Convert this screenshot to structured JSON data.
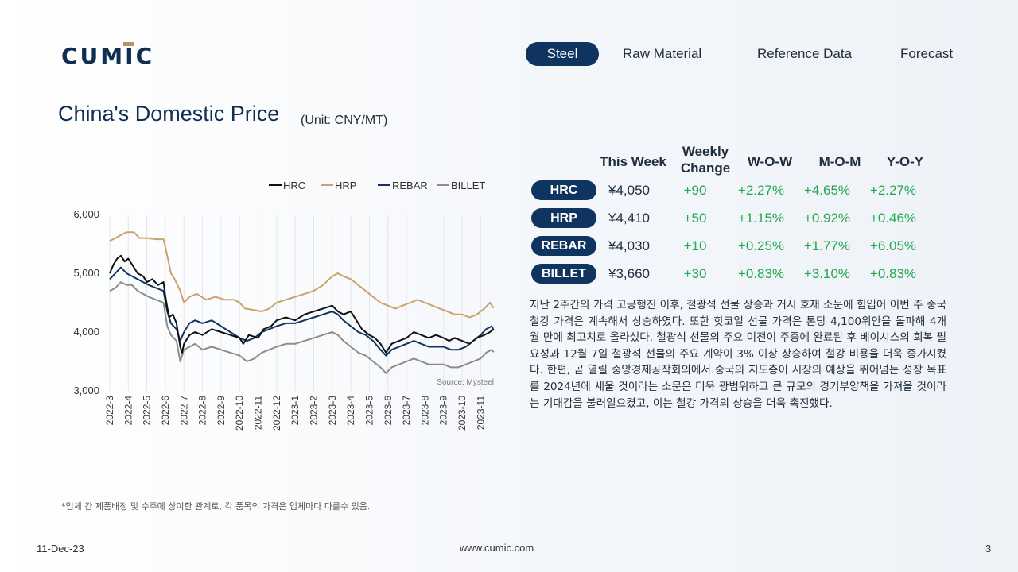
{
  "brand": {
    "name": "CUMIC",
    "url": "www.cumic.com"
  },
  "nav": {
    "tabs": [
      "Steel",
      "Raw Material",
      "Reference Data",
      "Forecast"
    ],
    "active": 0
  },
  "page": {
    "title": "China's Domestic Price",
    "unit": "(Unit: CNY/MT)",
    "date": "11-Dec-23",
    "number": "3"
  },
  "table": {
    "headers": {
      "this_week": "This Week",
      "weekly_change": [
        "Weekly",
        "Change"
      ],
      "wow": "W-O-W",
      "mom": "M-O-M",
      "yoy": "Y-O-Y"
    },
    "rows": [
      {
        "name": "HRC",
        "price": "¥4,050",
        "change": "+90",
        "wow": "+2.27%",
        "mom": "+4.65%",
        "yoy": "+2.27%"
      },
      {
        "name": "HRP",
        "price": "¥4,410",
        "change": "+50",
        "wow": "+1.15%",
        "mom": "+0.92%",
        "yoy": "+0.46%"
      },
      {
        "name": "REBAR",
        "price": "¥4,030",
        "change": "+10",
        "wow": "+0.25%",
        "mom": "+1.77%",
        "yoy": "+6.05%"
      },
      {
        "name": "BILLET",
        "price": "¥3,660",
        "change": "+30",
        "wow": "+0.83%",
        "mom": "+3.10%",
        "yoy": "+0.83%"
      }
    ],
    "positive_color": "#22a94f"
  },
  "commentary": "지난 2주간의 가격 고공행진 이후, 철광석 선물 상승과 거시 호재 소문에 힘입어 이번 주 중국 철강 가격은 계속해서 상승하였다. 또한 핫코일 선물 가격은 톤당 4,100위안을 돌파해 4개월 만에 최고치로 올라섰다. 철광석 선물의 주요 이전이 주중에 완료된 후 베이시스의 회복 필요성과 12월 7일 철광석 선물의 주요 계약이 3% 이상 상승하여 철강 비용을 더욱 증가시켰다. 한편, 곧 열릴 중앙경제공작회의에서 중국의 지도층이 시장의 예상을 뛰어넘는 성장 목표를 2024년에 세울 것이라는 소문은 더욱 광범위하고 큰 규모의 경기부양책을 가져올 것이라는 기대감을 불러일으켰고, 이는 철강 가격의 상승을 더욱 촉진했다.",
  "footnote": "*업체 간 제품배정 및 수주에 상이한 관계로, 각 품목의 가격은 업체마다 다를수 있음.",
  "chart_data": {
    "type": "line",
    "source": "Source: Mysteel",
    "ylim": [
      3000,
      6000
    ],
    "y_ticks": [
      3000,
      4000,
      5000,
      6000
    ],
    "y_tick_labels": [
      "3,000",
      "4,000",
      "5,000",
      "6,000"
    ],
    "x_tick_labels": [
      "2022-3",
      "2022-4",
      "2022-5",
      "2022-6",
      "2022-7",
      "2022-8",
      "2022-9",
      "2022-10",
      "2022-11",
      "2022-12",
      "2023-1",
      "2023-2",
      "2023-3",
      "2023-4",
      "2023-5",
      "2023-6",
      "2023-7",
      "2023-8",
      "2023-9",
      "2023-10",
      "2023-11"
    ],
    "x_months": [
      0,
      1,
      2,
      3,
      4,
      5,
      6,
      7,
      8,
      9,
      10,
      11,
      12,
      13,
      14,
      15,
      16,
      17,
      18,
      19,
      20
    ],
    "x_range": [
      0,
      20.8
    ],
    "legend_position": "top",
    "grid": "vertical",
    "series": [
      {
        "name": "HRC",
        "color": "#111111",
        "points": [
          [
            0,
            5000
          ],
          [
            0.2,
            5150
          ],
          [
            0.4,
            5250
          ],
          [
            0.6,
            5300
          ],
          [
            0.8,
            5200
          ],
          [
            1.0,
            5250
          ],
          [
            1.2,
            5150
          ],
          [
            1.5,
            5000
          ],
          [
            1.8,
            4950
          ],
          [
            2.0,
            4850
          ],
          [
            2.3,
            4900
          ],
          [
            2.6,
            4800
          ],
          [
            2.9,
            4850
          ],
          [
            3.0,
            4600
          ],
          [
            3.2,
            4250
          ],
          [
            3.4,
            4300
          ],
          [
            3.6,
            4150
          ],
          [
            3.8,
            3750
          ],
          [
            3.9,
            3650
          ],
          [
            4.0,
            3800
          ],
          [
            4.3,
            3950
          ],
          [
            4.6,
            4000
          ],
          [
            5.0,
            3950
          ],
          [
            5.5,
            4050
          ],
          [
            6.0,
            4000
          ],
          [
            6.5,
            3950
          ],
          [
            7.0,
            3900
          ],
          [
            7.2,
            3800
          ],
          [
            7.5,
            3950
          ],
          [
            8.0,
            3900
          ],
          [
            8.3,
            4050
          ],
          [
            8.7,
            4100
          ],
          [
            9.0,
            4200
          ],
          [
            9.5,
            4250
          ],
          [
            10.0,
            4200
          ],
          [
            10.5,
            4300
          ],
          [
            11.0,
            4350
          ],
          [
            11.5,
            4400
          ],
          [
            12.0,
            4450
          ],
          [
            12.3,
            4350
          ],
          [
            12.6,
            4300
          ],
          [
            13.0,
            4350
          ],
          [
            13.3,
            4200
          ],
          [
            13.6,
            4050
          ],
          [
            14.0,
            3950
          ],
          [
            14.3,
            3900
          ],
          [
            14.6,
            3800
          ],
          [
            14.9,
            3650
          ],
          [
            15.2,
            3800
          ],
          [
            15.6,
            3850
          ],
          [
            16.0,
            3900
          ],
          [
            16.4,
            4000
          ],
          [
            16.8,
            3950
          ],
          [
            17.2,
            3900
          ],
          [
            17.6,
            3950
          ],
          [
            18.0,
            3900
          ],
          [
            18.3,
            3850
          ],
          [
            18.6,
            3900
          ],
          [
            19.0,
            3850
          ],
          [
            19.4,
            3800
          ],
          [
            19.8,
            3900
          ],
          [
            20.2,
            3950
          ],
          [
            20.5,
            4000
          ],
          [
            20.7,
            4050
          ]
        ]
      },
      {
        "name": "HRP",
        "color": "#c9a36b",
        "points": [
          [
            0,
            5550
          ],
          [
            0.3,
            5600
          ],
          [
            0.6,
            5650
          ],
          [
            0.9,
            5700
          ],
          [
            1.3,
            5700
          ],
          [
            1.6,
            5600
          ],
          [
            2.0,
            5600
          ],
          [
            2.5,
            5580
          ],
          [
            2.9,
            5580
          ],
          [
            3.1,
            5300
          ],
          [
            3.3,
            5000
          ],
          [
            3.5,
            4900
          ],
          [
            3.8,
            4700
          ],
          [
            4.0,
            4500
          ],
          [
            4.3,
            4600
          ],
          [
            4.7,
            4650
          ],
          [
            5.2,
            4550
          ],
          [
            5.7,
            4600
          ],
          [
            6.2,
            4550
          ],
          [
            6.7,
            4550
          ],
          [
            7.0,
            4500
          ],
          [
            7.3,
            4400
          ],
          [
            7.7,
            4380
          ],
          [
            8.2,
            4350
          ],
          [
            8.6,
            4400
          ],
          [
            9.0,
            4500
          ],
          [
            9.5,
            4550
          ],
          [
            10.0,
            4600
          ],
          [
            10.5,
            4650
          ],
          [
            11.0,
            4700
          ],
          [
            11.5,
            4800
          ],
          [
            12.0,
            4950
          ],
          [
            12.3,
            5000
          ],
          [
            12.6,
            4950
          ],
          [
            13.0,
            4900
          ],
          [
            13.4,
            4800
          ],
          [
            13.8,
            4700
          ],
          [
            14.2,
            4600
          ],
          [
            14.6,
            4500
          ],
          [
            15.0,
            4450
          ],
          [
            15.4,
            4400
          ],
          [
            15.8,
            4450
          ],
          [
            16.2,
            4500
          ],
          [
            16.6,
            4550
          ],
          [
            17.0,
            4500
          ],
          [
            17.4,
            4450
          ],
          [
            17.8,
            4400
          ],
          [
            18.2,
            4350
          ],
          [
            18.6,
            4300
          ],
          [
            19.0,
            4300
          ],
          [
            19.4,
            4250
          ],
          [
            19.8,
            4300
          ],
          [
            20.2,
            4400
          ],
          [
            20.5,
            4500
          ],
          [
            20.7,
            4410
          ]
        ]
      },
      {
        "name": "REBAR",
        "color": "#0f3460",
        "points": [
          [
            0,
            4900
          ],
          [
            0.3,
            5000
          ],
          [
            0.6,
            5100
          ],
          [
            0.9,
            5000
          ],
          [
            1.2,
            4950
          ],
          [
            1.5,
            4900
          ],
          [
            1.8,
            4850
          ],
          [
            2.1,
            4800
          ],
          [
            2.5,
            4750
          ],
          [
            2.9,
            4700
          ],
          [
            3.1,
            4350
          ],
          [
            3.3,
            4150
          ],
          [
            3.6,
            4050
          ],
          [
            3.8,
            3850
          ],
          [
            4.0,
            4000
          ],
          [
            4.3,
            4150
          ],
          [
            4.6,
            4200
          ],
          [
            5.0,
            4150
          ],
          [
            5.5,
            4200
          ],
          [
            6.0,
            4100
          ],
          [
            6.5,
            4000
          ],
          [
            7.0,
            3900
          ],
          [
            7.4,
            3850
          ],
          [
            7.8,
            3900
          ],
          [
            8.2,
            4000
          ],
          [
            8.6,
            4050
          ],
          [
            9.0,
            4100
          ],
          [
            9.5,
            4150
          ],
          [
            10.0,
            4150
          ],
          [
            10.5,
            4200
          ],
          [
            11.0,
            4250
          ],
          [
            11.5,
            4300
          ],
          [
            12.0,
            4350
          ],
          [
            12.3,
            4300
          ],
          [
            12.6,
            4200
          ],
          [
            13.0,
            4100
          ],
          [
            13.4,
            4000
          ],
          [
            13.8,
            3950
          ],
          [
            14.2,
            3850
          ],
          [
            14.6,
            3700
          ],
          [
            14.9,
            3600
          ],
          [
            15.2,
            3700
          ],
          [
            15.6,
            3750
          ],
          [
            16.0,
            3800
          ],
          [
            16.4,
            3850
          ],
          [
            16.8,
            3800
          ],
          [
            17.2,
            3750
          ],
          [
            17.6,
            3750
          ],
          [
            18.0,
            3750
          ],
          [
            18.4,
            3700
          ],
          [
            18.8,
            3700
          ],
          [
            19.2,
            3750
          ],
          [
            19.6,
            3850
          ],
          [
            20.0,
            3950
          ],
          [
            20.3,
            4050
          ],
          [
            20.6,
            4100
          ],
          [
            20.7,
            4030
          ]
        ]
      },
      {
        "name": "BILLET",
        "color": "#8c8c8c",
        "points": [
          [
            0,
            4700
          ],
          [
            0.3,
            4750
          ],
          [
            0.6,
            4850
          ],
          [
            0.9,
            4800
          ],
          [
            1.2,
            4800
          ],
          [
            1.5,
            4700
          ],
          [
            1.8,
            4650
          ],
          [
            2.1,
            4600
          ],
          [
            2.5,
            4550
          ],
          [
            2.9,
            4500
          ],
          [
            3.1,
            4100
          ],
          [
            3.3,
            3950
          ],
          [
            3.6,
            3850
          ],
          [
            3.8,
            3500
          ],
          [
            4.0,
            3700
          ],
          [
            4.3,
            3750
          ],
          [
            4.6,
            3800
          ],
          [
            5.0,
            3700
          ],
          [
            5.5,
            3750
          ],
          [
            6.0,
            3700
          ],
          [
            6.5,
            3650
          ],
          [
            7.0,
            3600
          ],
          [
            7.4,
            3500
          ],
          [
            7.8,
            3550
          ],
          [
            8.2,
            3650
          ],
          [
            8.6,
            3700
          ],
          [
            9.0,
            3750
          ],
          [
            9.5,
            3800
          ],
          [
            10.0,
            3800
          ],
          [
            10.5,
            3850
          ],
          [
            11.0,
            3900
          ],
          [
            11.5,
            3950
          ],
          [
            12.0,
            4000
          ],
          [
            12.3,
            3950
          ],
          [
            12.6,
            3850
          ],
          [
            13.0,
            3750
          ],
          [
            13.4,
            3650
          ],
          [
            13.8,
            3600
          ],
          [
            14.2,
            3500
          ],
          [
            14.6,
            3400
          ],
          [
            14.9,
            3300
          ],
          [
            15.2,
            3400
          ],
          [
            15.6,
            3450
          ],
          [
            16.0,
            3500
          ],
          [
            16.4,
            3550
          ],
          [
            16.8,
            3500
          ],
          [
            17.2,
            3450
          ],
          [
            17.6,
            3450
          ],
          [
            18.0,
            3450
          ],
          [
            18.4,
            3400
          ],
          [
            18.8,
            3400
          ],
          [
            19.2,
            3450
          ],
          [
            19.6,
            3500
          ],
          [
            20.0,
            3550
          ],
          [
            20.3,
            3650
          ],
          [
            20.6,
            3700
          ],
          [
            20.7,
            3660
          ]
        ]
      }
    ]
  }
}
